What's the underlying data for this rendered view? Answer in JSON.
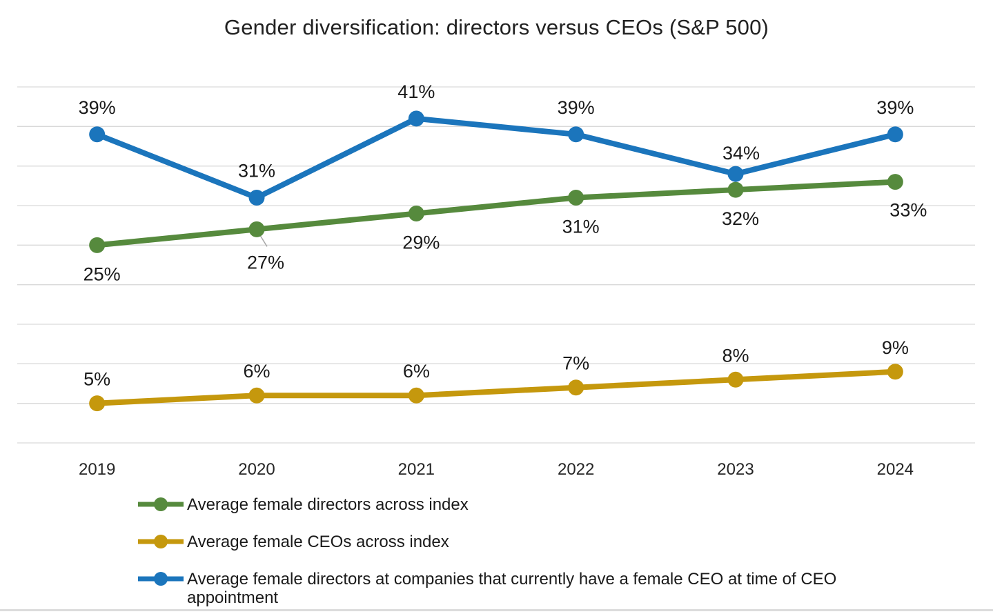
{
  "title": "Gender diversification: directors versus CEOs (S&P 500)",
  "colors": {
    "green": "#568A3D",
    "gold": "#C5980D",
    "blue": "#1B75BC",
    "gridline": "#D9D9D9",
    "leader_line": "#A6A6A6",
    "label_text": "#1A1A1A",
    "axis_text": "#262626"
  },
  "chart_data": {
    "type": "line",
    "title": "Gender diversification: directors versus CEOs (S&P 500)",
    "x": [
      "2019",
      "2020",
      "2021",
      "2022",
      "2023",
      "2024"
    ],
    "xlabel": "",
    "ylabel": "",
    "ylim": [
      0,
      45
    ],
    "gridline_step": 5,
    "grid": true,
    "y_axis_labels_visible": false,
    "legend_position": "bottom-left",
    "series": [
      {
        "name": "Average female CEOs across index",
        "color": "#C5980D",
        "values": [
          5,
          6,
          6,
          7,
          8,
          9
        ],
        "labels": [
          "5%",
          "6%",
          "6%",
          "7%",
          "8%",
          "9%"
        ],
        "label_side": "above",
        "label_offset": {
          "dx": 0,
          "dy": -26
        },
        "label_overrides": {}
      },
      {
        "name": "Average female directors across index",
        "color": "#568A3D",
        "values": [
          25,
          27,
          29,
          31,
          32,
          33
        ],
        "labels": [
          "25%",
          "27%",
          "29%",
          "31%",
          "32%",
          "33%"
        ],
        "label_side": "below",
        "label_offset": {
          "dx": 7,
          "dy": 51
        },
        "label_overrides": {
          "1": {
            "dx": 13,
            "dy": 57
          },
          "5": {
            "dx": 19,
            "dy": 50
          }
        },
        "leader_line": {
          "point_index": 1,
          "dx1": 2,
          "dy1": 4,
          "dx2": 15,
          "dy2": 25
        }
      },
      {
        "name": "Average female directors at companies that currently have a female CEO at time of CEO appointment",
        "color": "#1B75BC",
        "values": [
          39,
          31,
          41,
          39,
          34,
          39
        ],
        "labels": [
          "39%",
          "31%",
          "41%",
          "39%",
          "34%",
          "39%"
        ],
        "label_side": "above",
        "label_offset": {
          "dx": 0,
          "dy": -30
        },
        "label_overrides": {
          "4": {
            "dx": 8,
            "dy": -21
          }
        }
      }
    ]
  },
  "legend": {
    "items": [
      {
        "label": "Average female directors across index",
        "color": "#568A3D"
      },
      {
        "label": "Average female CEOs across index",
        "color": "#C5980D"
      },
      {
        "label": "Average female directors at companies that currently have a female CEO at time of CEO appointment",
        "color": "#1B75BC"
      }
    ]
  }
}
